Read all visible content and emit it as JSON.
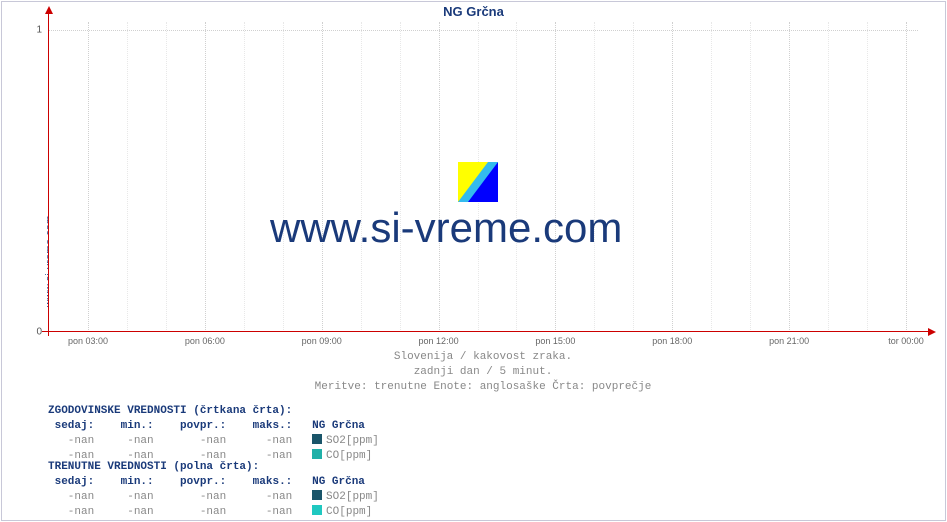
{
  "side_label": "www.si-vreme.com",
  "title": "NG Grčna",
  "chart": {
    "type": "line",
    "background_color": "#ffffff",
    "grid_color_major": "#d0d0d0",
    "grid_color_minor": "#e8e8e8",
    "axis_color": "#cc0000",
    "ylim": [
      0,
      1
    ],
    "yticks": [
      0,
      1
    ],
    "xtick_labels": [
      "pon 03:00",
      "pon 06:00",
      "pon 09:00",
      "pon 12:00",
      "pon 15:00",
      "pon 18:00",
      "pon 21:00",
      "tor 00:00"
    ],
    "xtick_fontsize": 9,
    "ytick_fontsize": 10,
    "title_fontsize": 13,
    "title_color": "#1a3a7a",
    "series": []
  },
  "watermark": {
    "text": "www.si-vreme.com",
    "text_color": "#1a3a7a",
    "text_fontsize": 42,
    "logo_colors": {
      "tri_left": "#ffff00",
      "tri_right": "#0000ff",
      "diag": "#33bbee"
    }
  },
  "subtitles": {
    "line1": "Slovenija / kakovost zraka.",
    "line2": "zadnji dan / 5 minut.",
    "line3": "Meritve: trenutne  Enote: anglosaške  Črta: povprečje"
  },
  "legend": {
    "hist_header": "ZGODOVINSKE VREDNOSTI (črtkana črta):",
    "curr_header": "TRENUTNE VREDNOSTI (polna črta):",
    "cols": {
      "sedaj": "sedaj:",
      "min": "min.:",
      "povpr": "povpr.:",
      "maks": "maks.:",
      "station": "NG Grčna"
    },
    "nan": "-nan",
    "rows": [
      {
        "label": "SO2[ppm]",
        "swatch": "#1a556a",
        "hist_swatch": "#1a556a"
      },
      {
        "label": "CO[ppm]",
        "swatch": "#20c8c0",
        "hist_swatch": "#20b0a8"
      }
    ],
    "header_color": "#1a3a7a",
    "value_color": "#888888",
    "fontsize": 11
  }
}
